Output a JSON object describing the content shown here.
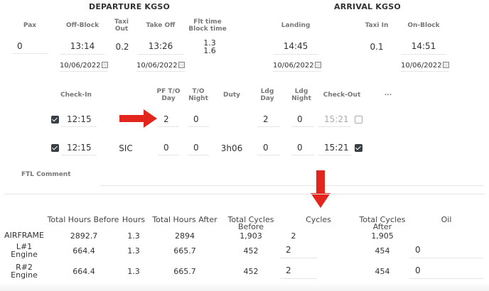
{
  "departure_title": "DEPARTURE KGSO",
  "arrival_title": "ARRIVAL KGSO",
  "flight": {
    "pax_label": "Pax",
    "pax_value": "0",
    "offblock_label": "Off-Block",
    "offblock_value": "13:14",
    "offblock_date": "10/06/2022",
    "taxiout_label": "Taxi Out",
    "taxiout_value": "0.2",
    "takeoff_label": "Take Off",
    "takeoff_value": "13:26",
    "takeoff_date": "10/06/2022",
    "flttime_label": "Flt time Block time",
    "flttime_value": "1.3",
    "blocktime_value": "1.6",
    "landing_label": "Landing",
    "landing_value": "14:45",
    "landing_date": "10/06/2022",
    "taxiin_label": "Taxi In",
    "taxiin_value": "0.1",
    "onblock_label": "On-Block",
    "onblock_value": "14:51",
    "onblock_date": "10/06/2022"
  },
  "crew_headers": {
    "checkin": "Check-In",
    "pf_to_day": "PF T/O Day",
    "to_night": "T/O Night",
    "duty": "Duty",
    "ldg_day": "Ldg Day",
    "ldg_night": "Ldg Night",
    "checkout": "Check-Out",
    "more": "..."
  },
  "crew_rows": [
    {
      "checked": true,
      "checkin": "12:15",
      "role": "",
      "to_day": "2",
      "to_night": "0",
      "duty": "",
      "ldg_day": "2",
      "ldg_night": "0",
      "checkout": "15:21",
      "checkout_checked": false
    },
    {
      "checked": true,
      "checkin": "12:15",
      "role": "SIC",
      "to_day": "0",
      "to_night": "0",
      "duty": "3h06",
      "ldg_day": "0",
      "ldg_night": "0",
      "checkout": "15:21",
      "checkout_checked": true
    }
  ],
  "ftl_comment_label": "FTL Comment",
  "totals_headers": {
    "hours_before": "Total Hours Before",
    "hours": "Hours",
    "hours_after": "Total Hours After",
    "cycles_before": "Total Cycles Before",
    "cycles": "Cycles",
    "cycles_after": "Total Cycles After",
    "oil": "Oil"
  },
  "totals_rows": [
    {
      "label": "AIRFRAME",
      "hours_before": "2892.7",
      "hours": "1.3",
      "hours_after": "2894",
      "cycles_before": "1,903",
      "cycles": "2",
      "cycles_after": "1,905",
      "oil": ""
    },
    {
      "label": "L#1 Engine",
      "hours_before": "664.4",
      "hours": "1.3",
      "hours_after": "665.7",
      "cycles_before": "452",
      "cycles": "2",
      "cycles_after": "454",
      "oil": "0"
    },
    {
      "label": "R#2 Engine",
      "hours_before": "664.4",
      "hours": "1.3",
      "hours_after": "665.7",
      "cycles_before": "452",
      "cycles": "2",
      "cycles_after": "454",
      "oil": "0"
    }
  ],
  "colors": {
    "arrow": "#e3261d",
    "text": "#333333",
    "label": "#777777",
    "divider": "#e6e6e6"
  }
}
